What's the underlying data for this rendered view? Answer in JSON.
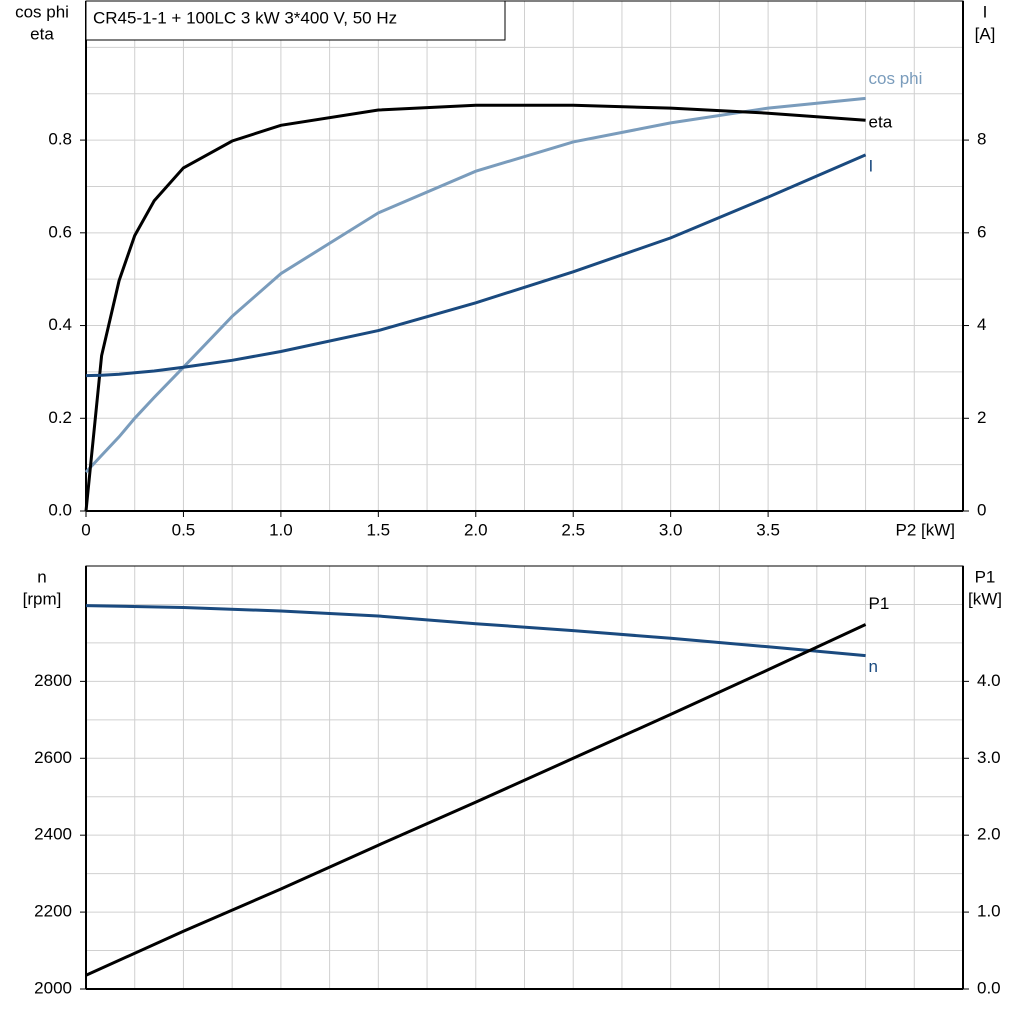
{
  "chart_data": [
    {
      "type": "line",
      "title": "CR45-1-1 + 100LC   3 kW   3*400 V, 50 Hz",
      "xlabel": "P2 [kW]",
      "ylabel": [
        "cos phi",
        "eta"
      ],
      "y2label": [
        "I",
        "[A]"
      ],
      "x": [
        0,
        0.08,
        0.17,
        0.25,
        0.35,
        0.5,
        0.75,
        1,
        1.5,
        2,
        2.5,
        3,
        3.5,
        4
      ],
      "xlim": [
        0,
        4.5
      ],
      "xticks": [
        0,
        0.5,
        {
          "value": 1,
          "label": "1.0"
        },
        1.5,
        {
          "value": 2,
          "label": "2.0"
        },
        2.5,
        {
          "value": 3,
          "label": "3.0"
        },
        3.5
      ],
      "xgrid": [
        0.25,
        0.5,
        0.75,
        1,
        1.25,
        1.5,
        1.75,
        2,
        2.25,
        2.5,
        2.75,
        3,
        3.25,
        3.5,
        3.75,
        4,
        4.25
      ],
      "ylim": [
        0,
        1.1
      ],
      "yticks": [
        {
          "value": 0,
          "label": "0.0"
        },
        0.2,
        0.4,
        0.6,
        0.8
      ],
      "ygrid": [
        0.1,
        0.2,
        0.3,
        0.4,
        0.5,
        0.6,
        0.7,
        0.8,
        0.9,
        1.0
      ],
      "y2lim": [
        0,
        11
      ],
      "y2ticks": [
        0,
        2,
        4,
        6,
        8
      ],
      "series": [
        {
          "name": "cos phi",
          "color": "#7a9cbc",
          "values": [
            0.084,
            0.12,
            0.16,
            0.2,
            0.245,
            0.31,
            0.42,
            0.512,
            0.643,
            0.733,
            0.796,
            0.837,
            0.869,
            0.89
          ]
        },
        {
          "name": "eta",
          "color": "#000000",
          "values": [
            0,
            0.335,
            0.497,
            0.594,
            0.669,
            0.74,
            0.798,
            0.832,
            0.865,
            0.875,
            0.875,
            0.869,
            0.858,
            0.843
          ]
        },
        {
          "name": "I",
          "color": "#1a4a7f",
          "axis": "y2",
          "values": [
            2.92,
            2.93,
            2.95,
            2.98,
            3.02,
            3.1,
            3.25,
            3.44,
            3.89,
            4.49,
            5.16,
            5.89,
            6.77,
            7.68
          ]
        }
      ]
    },
    {
      "type": "line",
      "ylabel": [
        "n",
        "[rpm]"
      ],
      "y2label": [
        "P1",
        "[kW]"
      ],
      "x": [
        0,
        0.5,
        1,
        1.5,
        2,
        2.5,
        3,
        3.5,
        4
      ],
      "xlim": [
        0,
        4.5
      ],
      "xgrid": [
        0.25,
        0.5,
        0.75,
        1,
        1.25,
        1.5,
        1.75,
        2,
        2.25,
        2.5,
        2.75,
        3,
        3.25,
        3.5,
        3.75,
        4,
        4.25
      ],
      "ylim": [
        2000,
        3100
      ],
      "yticks": [
        2000,
        2200,
        2400,
        2600,
        2800
      ],
      "ygrid": [
        2100,
        2200,
        2300,
        2400,
        2500,
        2600,
        2700,
        2800,
        2900,
        3000
      ],
      "y2lim": [
        0,
        5.5
      ],
      "y2ticks": [
        {
          "value": 0,
          "label": "0.0"
        },
        {
          "value": 1,
          "label": "1.0"
        },
        {
          "value": 2,
          "label": "2.0"
        },
        {
          "value": 3,
          "label": "3.0"
        },
        {
          "value": 4,
          "label": "4.0"
        }
      ],
      "series": [
        {
          "name": "n",
          "color": "#1a4a7f",
          "values": [
            2997,
            2992,
            2983,
            2970,
            2950,
            2932,
            2912,
            2890,
            2867
          ]
        },
        {
          "name": "P1",
          "color": "#000000",
          "axis": "y2",
          "values": [
            0.18,
            0.75,
            1.3,
            1.87,
            2.43,
            3.0,
            3.57,
            4.15,
            4.74
          ]
        }
      ]
    }
  ]
}
